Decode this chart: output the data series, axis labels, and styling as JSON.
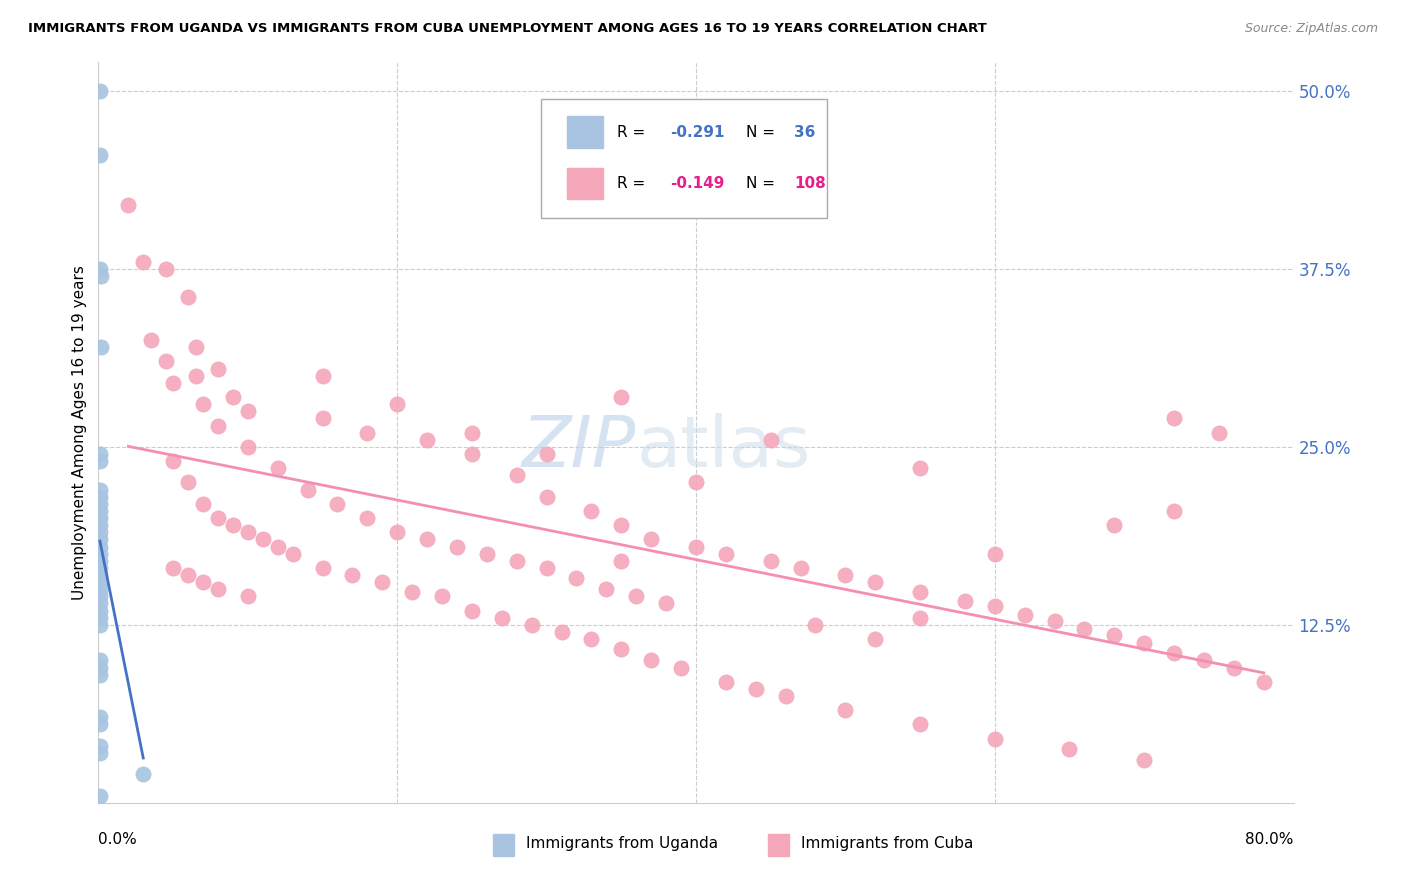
{
  "title": "IMMIGRANTS FROM UGANDA VS IMMIGRANTS FROM CUBA UNEMPLOYMENT AMONG AGES 16 TO 19 YEARS CORRELATION CHART",
  "source": "Source: ZipAtlas.com",
  "ylabel": "Unemployment Among Ages 16 to 19 years",
  "yticks": [
    0.0,
    0.125,
    0.25,
    0.375,
    0.5
  ],
  "ytick_labels": [
    "",
    "12.5%",
    "25.0%",
    "37.5%",
    "50.0%"
  ],
  "xlim": [
    0.0,
    0.8
  ],
  "ylim": [
    0.0,
    0.52
  ],
  "uganda_color": "#a8c4e0",
  "cuba_color": "#f4a7b9",
  "uganda_line_color": "#4472C4",
  "cuba_line_color": "#f48fb1",
  "uganda_scatter": [
    [
      0.001,
      0.5
    ],
    [
      0.001,
      0.455
    ],
    [
      0.001,
      0.375
    ],
    [
      0.002,
      0.37
    ],
    [
      0.001,
      0.245
    ],
    [
      0.001,
      0.24
    ],
    [
      0.002,
      0.32
    ],
    [
      0.001,
      0.22
    ],
    [
      0.001,
      0.215
    ],
    [
      0.001,
      0.21
    ],
    [
      0.001,
      0.205
    ],
    [
      0.001,
      0.2
    ],
    [
      0.001,
      0.195
    ],
    [
      0.001,
      0.19
    ],
    [
      0.001,
      0.185
    ],
    [
      0.001,
      0.18
    ],
    [
      0.001,
      0.175
    ],
    [
      0.001,
      0.17
    ],
    [
      0.001,
      0.165
    ],
    [
      0.001,
      0.16
    ],
    [
      0.001,
      0.155
    ],
    [
      0.001,
      0.15
    ],
    [
      0.001,
      0.145
    ],
    [
      0.001,
      0.14
    ],
    [
      0.001,
      0.135
    ],
    [
      0.001,
      0.13
    ],
    [
      0.001,
      0.125
    ],
    [
      0.001,
      0.1
    ],
    [
      0.001,
      0.095
    ],
    [
      0.001,
      0.09
    ],
    [
      0.001,
      0.06
    ],
    [
      0.001,
      0.055
    ],
    [
      0.001,
      0.04
    ],
    [
      0.001,
      0.035
    ],
    [
      0.001,
      0.005
    ],
    [
      0.03,
      0.02
    ]
  ],
  "cuba_scatter": [
    [
      0.02,
      0.42
    ],
    [
      0.03,
      0.38
    ],
    [
      0.045,
      0.375
    ],
    [
      0.06,
      0.355
    ],
    [
      0.035,
      0.325
    ],
    [
      0.065,
      0.32
    ],
    [
      0.045,
      0.31
    ],
    [
      0.08,
      0.305
    ],
    [
      0.065,
      0.3
    ],
    [
      0.05,
      0.295
    ],
    [
      0.09,
      0.285
    ],
    [
      0.07,
      0.28
    ],
    [
      0.1,
      0.275
    ],
    [
      0.15,
      0.27
    ],
    [
      0.08,
      0.265
    ],
    [
      0.18,
      0.26
    ],
    [
      0.22,
      0.255
    ],
    [
      0.1,
      0.25
    ],
    [
      0.25,
      0.245
    ],
    [
      0.05,
      0.24
    ],
    [
      0.12,
      0.235
    ],
    [
      0.28,
      0.23
    ],
    [
      0.06,
      0.225
    ],
    [
      0.14,
      0.22
    ],
    [
      0.3,
      0.215
    ],
    [
      0.07,
      0.21
    ],
    [
      0.16,
      0.21
    ],
    [
      0.33,
      0.205
    ],
    [
      0.08,
      0.2
    ],
    [
      0.18,
      0.2
    ],
    [
      0.35,
      0.195
    ],
    [
      0.09,
      0.195
    ],
    [
      0.2,
      0.19
    ],
    [
      0.37,
      0.185
    ],
    [
      0.1,
      0.19
    ],
    [
      0.22,
      0.185
    ],
    [
      0.4,
      0.18
    ],
    [
      0.11,
      0.185
    ],
    [
      0.24,
      0.18
    ],
    [
      0.42,
      0.175
    ],
    [
      0.12,
      0.18
    ],
    [
      0.26,
      0.175
    ],
    [
      0.45,
      0.17
    ],
    [
      0.13,
      0.175
    ],
    [
      0.28,
      0.17
    ],
    [
      0.47,
      0.165
    ],
    [
      0.05,
      0.165
    ],
    [
      0.15,
      0.165
    ],
    [
      0.3,
      0.165
    ],
    [
      0.5,
      0.16
    ],
    [
      0.06,
      0.16
    ],
    [
      0.17,
      0.16
    ],
    [
      0.32,
      0.158
    ],
    [
      0.52,
      0.155
    ],
    [
      0.07,
      0.155
    ],
    [
      0.19,
      0.155
    ],
    [
      0.34,
      0.15
    ],
    [
      0.55,
      0.148
    ],
    [
      0.08,
      0.15
    ],
    [
      0.21,
      0.148
    ],
    [
      0.36,
      0.145
    ],
    [
      0.58,
      0.142
    ],
    [
      0.1,
      0.145
    ],
    [
      0.23,
      0.145
    ],
    [
      0.38,
      0.14
    ],
    [
      0.6,
      0.138
    ],
    [
      0.25,
      0.135
    ],
    [
      0.62,
      0.132
    ],
    [
      0.27,
      0.13
    ],
    [
      0.64,
      0.128
    ],
    [
      0.29,
      0.125
    ],
    [
      0.66,
      0.122
    ],
    [
      0.31,
      0.12
    ],
    [
      0.68,
      0.118
    ],
    [
      0.33,
      0.115
    ],
    [
      0.7,
      0.112
    ],
    [
      0.35,
      0.108
    ],
    [
      0.72,
      0.105
    ],
    [
      0.37,
      0.1
    ],
    [
      0.74,
      0.1
    ],
    [
      0.39,
      0.095
    ],
    [
      0.76,
      0.095
    ],
    [
      0.42,
      0.085
    ],
    [
      0.78,
      0.085
    ],
    [
      0.44,
      0.08
    ],
    [
      0.46,
      0.075
    ],
    [
      0.5,
      0.065
    ],
    [
      0.55,
      0.055
    ],
    [
      0.6,
      0.045
    ],
    [
      0.65,
      0.038
    ],
    [
      0.7,
      0.03
    ],
    [
      0.48,
      0.125
    ],
    [
      0.52,
      0.115
    ],
    [
      0.35,
      0.17
    ],
    [
      0.25,
      0.26
    ],
    [
      0.3,
      0.245
    ],
    [
      0.2,
      0.28
    ],
    [
      0.15,
      0.3
    ],
    [
      0.55,
      0.13
    ],
    [
      0.6,
      0.175
    ],
    [
      0.72,
      0.205
    ],
    [
      0.75,
      0.26
    ],
    [
      0.72,
      0.27
    ],
    [
      0.35,
      0.285
    ],
    [
      0.45,
      0.255
    ],
    [
      0.55,
      0.235
    ],
    [
      0.4,
      0.225
    ],
    [
      0.68,
      0.195
    ]
  ]
}
